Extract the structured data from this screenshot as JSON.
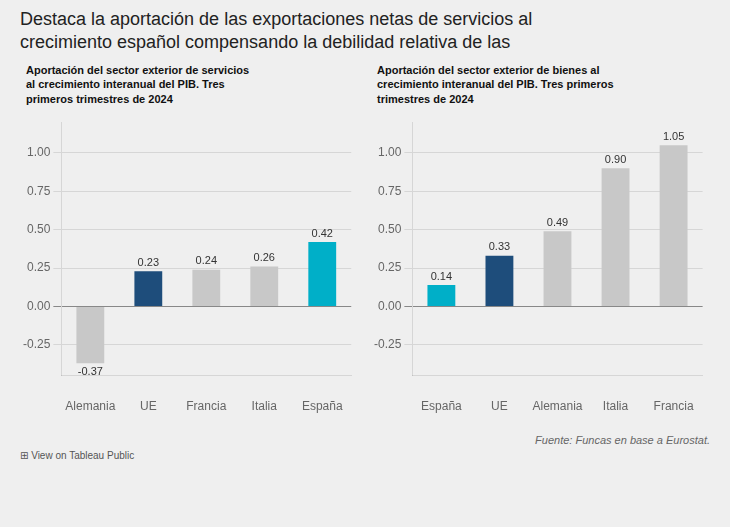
{
  "title": "Destaca la aportación de las exportaciones netas de servicios al\ncrecimiento español compensando la debilidad relativa de las",
  "annotations": [
    "Fuente: Funcas en base a Eurostat.",
    "⊞  View on Tableau Public"
  ],
  "chart_data": [
    {
      "type": "bar",
      "subtitle": "Aportación del sector exterior de servicios\nal crecimiento interanual del PIB. Tres\nprimeros trimestres de 2024",
      "categories": [
        "Alemania",
        "UE",
        "Francia",
        "Italia",
        "España"
      ],
      "values": [
        -0.37,
        0.23,
        0.24,
        0.26,
        0.42
      ],
      "colors": [
        "#c8c8c8",
        "#1e4d7b",
        "#c8c8c8",
        "#c8c8c8",
        "#00afc8"
      ],
      "ylim": [
        -0.45,
        1.2
      ],
      "yticks": [
        -0.25,
        {
          "value": 0.0,
          "label": "0.00"
        },
        0.25,
        {
          "value": 0.5,
          "label": "0.50"
        },
        0.75,
        {
          "value": 1.0,
          "label": "1.00"
        }
      ],
      "grid": true,
      "data_labels": true
    },
    {
      "type": "bar",
      "subtitle": "Aportación del sector exterior de bienes al\ncrecimiento interanual del PIB. Tres primeros\ntrimestres de 2024",
      "categories": [
        "España",
        "UE",
        "Alemania",
        "Italia",
        "Francia"
      ],
      "values": [
        0.14,
        0.33,
        0.49,
        0.9,
        1.05
      ],
      "value_labels": [
        "0.14",
        "0.33",
        "0.49",
        "0.90",
        "1.05"
      ],
      "colors": [
        "#00afc8",
        "#1e4d7b",
        "#c8c8c8",
        "#c8c8c8",
        "#c8c8c8"
      ],
      "ylim": [
        -0.45,
        1.2
      ],
      "yticks": [
        -0.25,
        {
          "value": 0.0,
          "label": "0.00"
        },
        0.25,
        {
          "value": 0.5,
          "label": "0.50"
        },
        0.75,
        {
          "value": 1.0,
          "label": "1.00"
        }
      ],
      "grid": true,
      "data_labels": true
    }
  ]
}
